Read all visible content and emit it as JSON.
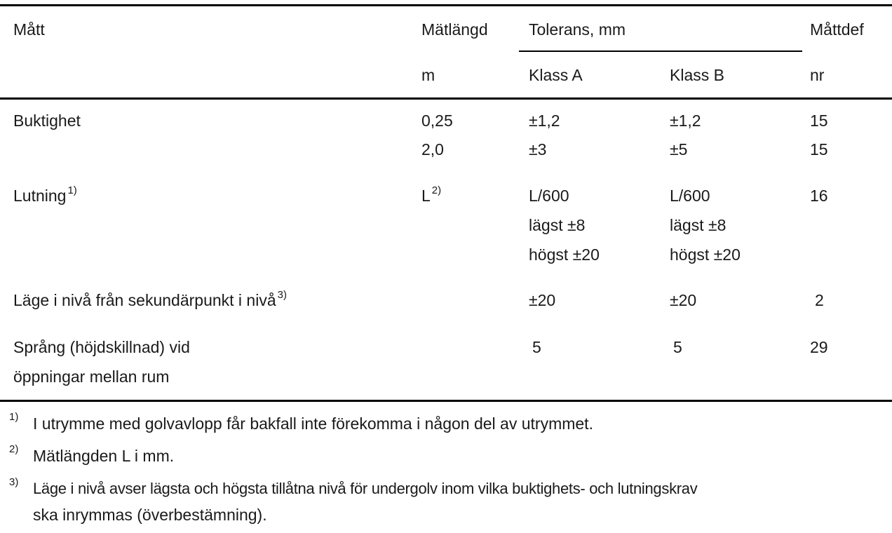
{
  "header": {
    "col_matt": "Mått",
    "col_matlangd": "Mätlängd",
    "col_matlangd_unit": "m",
    "col_tolerans": "Tolerans, mm",
    "col_klass_a": "Klass A",
    "col_klass_b": "Klass B",
    "col_mattdef": "Måttdef",
    "col_mattdef_unit": "nr"
  },
  "rows": [
    {
      "label": "Buktighet",
      "matlangd": [
        "0,25",
        "2,0"
      ],
      "klass_a": [
        "±1,2",
        "±3"
      ],
      "klass_b": [
        "±1,2",
        "±5"
      ],
      "mattdef": [
        "15",
        "15"
      ]
    },
    {
      "label": "Lutning",
      "label_sup": "1)",
      "matlangd": "L",
      "matlangd_sup": "2)",
      "klass_a": [
        "L/600",
        "lägst ±8",
        "högst ±20"
      ],
      "klass_b": [
        "L/600",
        "lägst ±8",
        "högst ±20"
      ],
      "mattdef": "16"
    },
    {
      "label": "Läge i nivå från sekundärpunkt i nivå",
      "label_sup": "3)",
      "klass_a": "±20",
      "klass_b": "±20",
      "mattdef": "2"
    },
    {
      "label": [
        "Språng (höjdskillnad) vid",
        "öppningar mellan rum"
      ],
      "klass_a": "5",
      "klass_b": "5",
      "mattdef": "29"
    }
  ],
  "footnotes": [
    {
      "mark": "1)",
      "text": "I utrymme med golvavlopp får bakfall inte förekomma i någon del av utrymmet."
    },
    {
      "mark": "2)",
      "text": "Mätlängden L i mm."
    },
    {
      "mark": "3)",
      "text": [
        "Läge i nivå avser lägsta och högsta tillåtna nivå för undergolv inom vilka buktighets- och lutningskrav",
        "ska inrymmas (överbestämning)."
      ]
    }
  ]
}
